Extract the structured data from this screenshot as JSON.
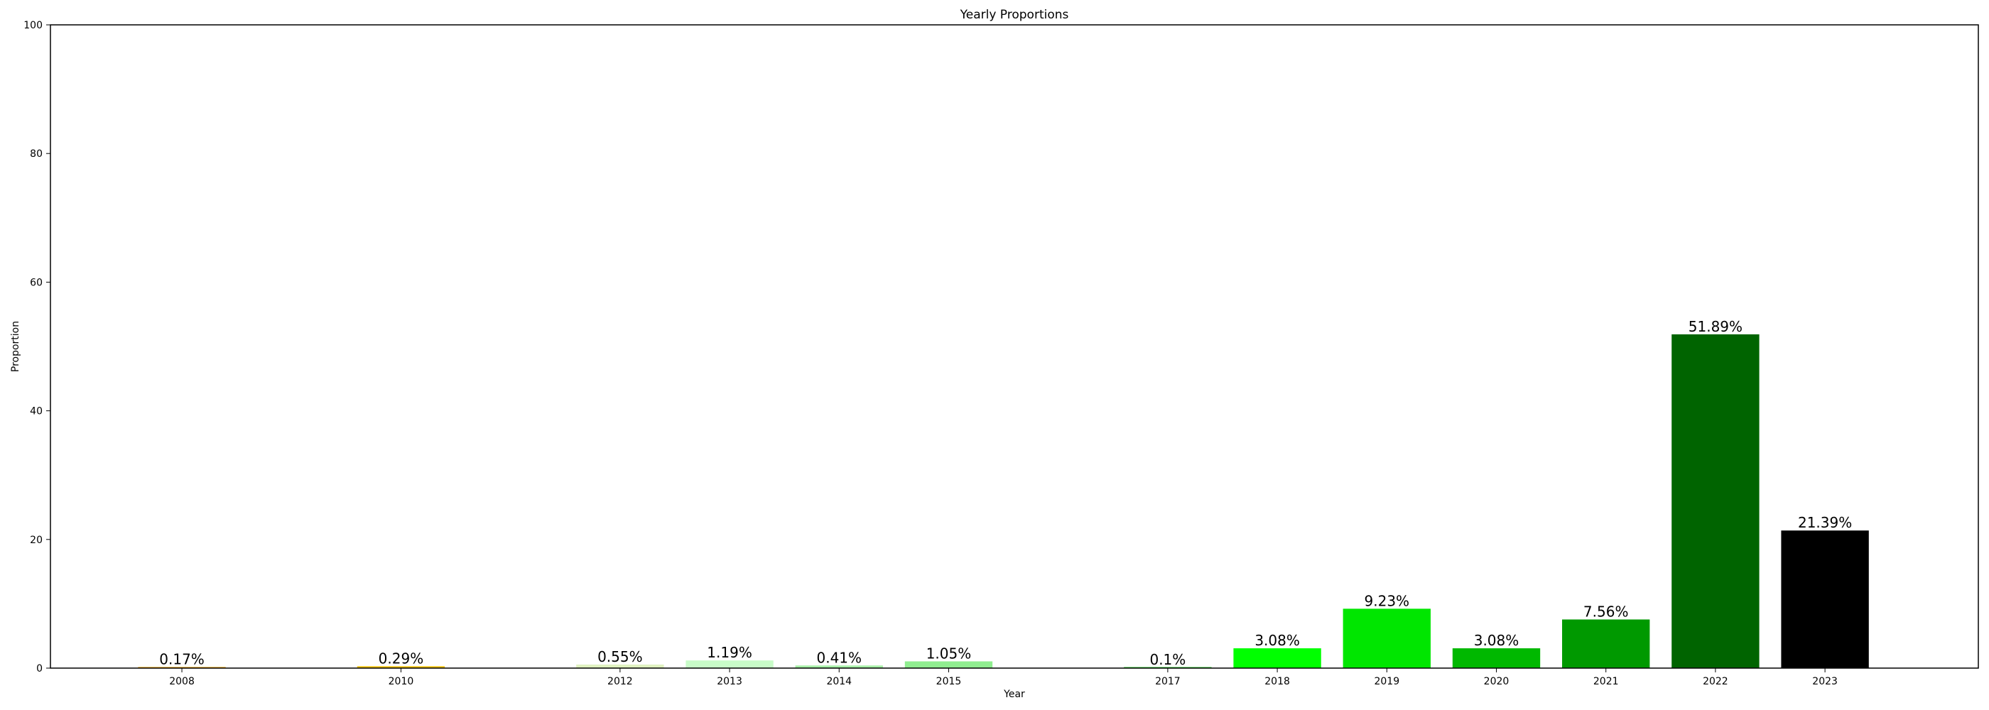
{
  "chart_data": {
    "type": "bar",
    "title": "Yearly Proportions",
    "xlabel": "Year",
    "ylabel": "Proportion",
    "ylim": [
      0,
      100
    ],
    "xlim": [
      2006.8,
      2024.4
    ],
    "y_ticks": [
      0,
      20,
      40,
      60,
      80,
      100
    ],
    "grid": false,
    "categories": [
      2008,
      2010,
      2012,
      2013,
      2014,
      2015,
      2017,
      2018,
      2019,
      2020,
      2021,
      2022,
      2023
    ],
    "values": [
      0.17,
      0.29,
      0.55,
      1.19,
      0.41,
      1.05,
      0.1,
      3.08,
      9.23,
      3.08,
      7.56,
      51.89,
      21.39
    ],
    "data_labels": [
      "0.17%",
      "0.29%",
      "0.55%",
      "1.19%",
      "0.41%",
      "1.05%",
      "0.1%",
      "3.08%",
      "9.23%",
      "3.08%",
      "7.56%",
      "51.89%",
      "21.39%"
    ],
    "colors": [
      "#f5a000",
      "#f2c200",
      "#e0f2c0",
      "#c8fcc8",
      "#a8f0a8",
      "#90ee90",
      "#32cd32",
      "#00ff00",
      "#00e600",
      "#00b800",
      "#009900",
      "#006400",
      "#000000"
    ]
  }
}
